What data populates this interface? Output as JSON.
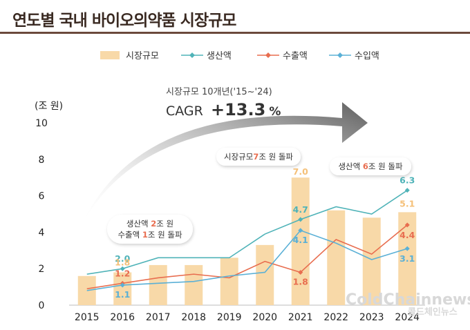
{
  "title": "연도별 국내 바이오의약품 시장규모",
  "chart_data": {
    "type": "bar+line",
    "unit_label": "(조 원)",
    "ylim": [
      0,
      10
    ],
    "yticks": [
      0,
      2,
      4,
      6,
      8,
      10
    ],
    "categories": [
      "2015",
      "2016",
      "2017",
      "2018",
      "2019",
      "2020",
      "2021",
      "2022",
      "2023",
      "2024"
    ],
    "bars": {
      "name": "시장규모",
      "color": "#f8d9a8",
      "values": [
        1.6,
        1.8,
        2.2,
        2.2,
        2.6,
        3.3,
        7.0,
        5.2,
        4.8,
        5.1
      ]
    },
    "lines": [
      {
        "name": "생산액",
        "color": "#4fb3b8",
        "values": [
          1.7,
          2.0,
          2.6,
          2.6,
          2.6,
          3.9,
          4.7,
          5.4,
          5.0,
          6.3
        ]
      },
      {
        "name": "수출액",
        "color": "#e86d4f",
        "values": [
          0.9,
          1.2,
          1.5,
          1.7,
          1.5,
          2.4,
          1.8,
          3.6,
          2.8,
          4.4
        ]
      },
      {
        "name": "수입액",
        "color": "#5ab0d6",
        "values": [
          0.8,
          1.1,
          1.2,
          1.3,
          1.6,
          1.8,
          4.1,
          3.4,
          2.5,
          3.1
        ]
      }
    ],
    "data_labels": [
      {
        "text": "2.0",
        "color": "#4fb3b8",
        "year": "2016",
        "value": 2.0
      },
      {
        "text": "1.8",
        "color": "#f5c078",
        "year": "2016",
        "value": 1.8
      },
      {
        "text": "1.2",
        "color": "#e86d4f",
        "year": "2016",
        "value": 1.2
      },
      {
        "text": "1.1",
        "color": "#5ab0d6",
        "year": "2016",
        "value": 1.1
      },
      {
        "text": "7.0",
        "color": "#f5c078",
        "year": "2021",
        "value": 7.0
      },
      {
        "text": "4.7",
        "color": "#4fb3b8",
        "year": "2021",
        "value": 4.7
      },
      {
        "text": "4.1",
        "color": "#5ab0d6",
        "year": "2021",
        "value": 4.1
      },
      {
        "text": "1.8",
        "color": "#e86d4f",
        "year": "2021",
        "value": 1.8
      },
      {
        "text": "6.3",
        "color": "#4fb3b8",
        "year": "2024",
        "value": 6.3
      },
      {
        "text": "5.1",
        "color": "#f5c078",
        "year": "2024",
        "value": 5.1
      },
      {
        "text": "4.4",
        "color": "#e86d4f",
        "year": "2024",
        "value": 4.4
      },
      {
        "text": "3.1",
        "color": "#5ab0d6",
        "year": "2024",
        "value": 3.1
      }
    ],
    "cagr": {
      "caption": "시장규모 10개년('15~'24)",
      "label": "CAGR",
      "value": "+13.3",
      "suffix": "%"
    },
    "annotations": [
      {
        "lines": [
          [
            "생산액 ",
            "2",
            "조 원"
          ],
          [
            "수출액 ",
            "1",
            "조 원 돌파"
          ]
        ]
      },
      {
        "lines": [
          [
            "시장규모",
            "7",
            "조 원 돌파"
          ]
        ]
      },
      {
        "lines": [
          [
            "생산액 ",
            "6",
            "조 원 돌파"
          ]
        ]
      }
    ]
  },
  "watermark": {
    "main": "ColdChainnews",
    "sub": "콜드체인뉴스"
  }
}
